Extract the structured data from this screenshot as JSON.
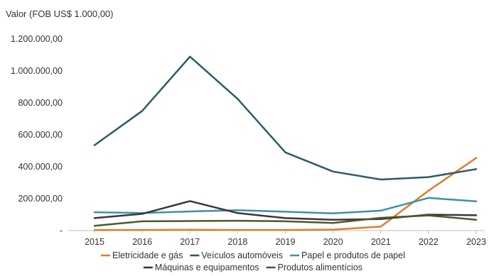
{
  "chart_data": {
    "type": "line",
    "ylabel": "Valor (FOB US$ 1.000,00)",
    "x": [
      "2015",
      "2016",
      "2017",
      "2018",
      "2019",
      "2020",
      "2021",
      "2022",
      "2023"
    ],
    "ylim": [
      0,
      1200000
    ],
    "yticks": [
      0,
      200000,
      400000,
      600000,
      800000,
      1000000,
      1200000
    ],
    "ytick_labels": [
      "-",
      "200.000,00",
      "400.000,00",
      "600.000,00",
      "800.000,00",
      "1.000.000,00",
      "1.200.000,00"
    ],
    "grid": false,
    "legend_position": "bottom",
    "series": [
      {
        "name": "Eletricidade e gás",
        "color": "#e07b29",
        "values": [
          3000,
          4000,
          5000,
          4000,
          4000,
          6000,
          25000,
          250000,
          455000
        ]
      },
      {
        "name": "Veículos automóveis",
        "color": "#2e5a6b",
        "values": [
          535000,
          750000,
          1090000,
          825000,
          490000,
          370000,
          320000,
          335000,
          385000
        ]
      },
      {
        "name": "Papel e produtos de papel",
        "color": "#3e90a8",
        "values": [
          115000,
          110000,
          120000,
          128000,
          118000,
          108000,
          125000,
          205000,
          183000
        ]
      },
      {
        "name": "Máquinas e equipamentos",
        "color": "#3b3540",
        "values": [
          78000,
          105000,
          185000,
          110000,
          78000,
          68000,
          72000,
          100000,
          96000
        ]
      },
      {
        "name": "Produtos alimentícios",
        "color": "#4a5a2a",
        "values": [
          30000,
          58000,
          60000,
          62000,
          58000,
          48000,
          80000,
          95000,
          68000
        ]
      }
    ]
  }
}
